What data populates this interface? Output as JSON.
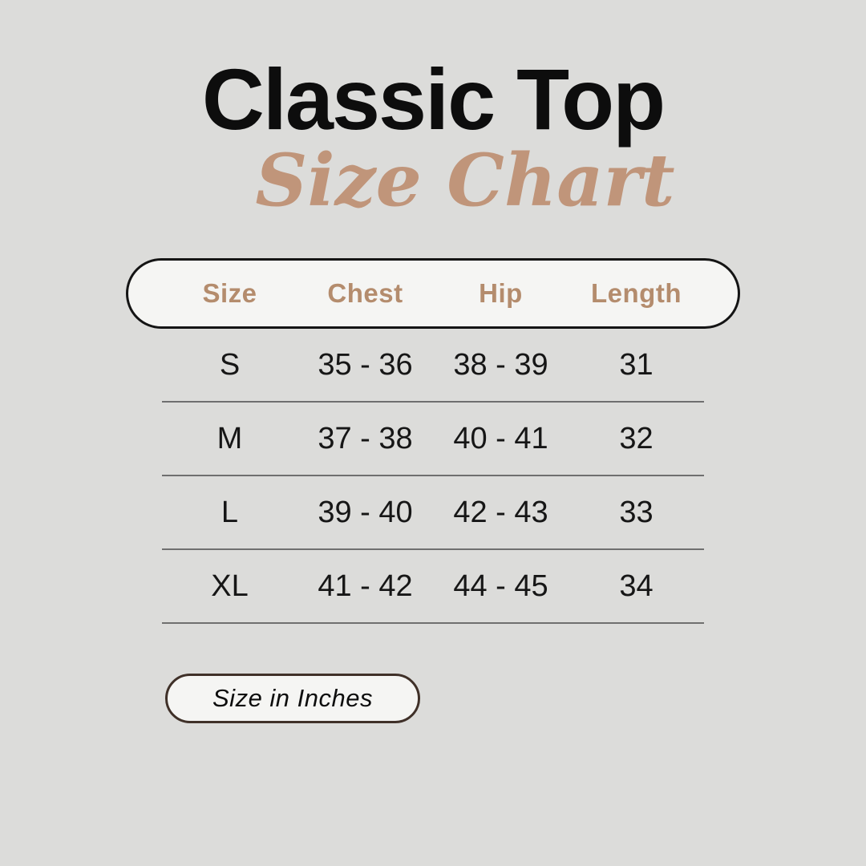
{
  "header": {
    "title": "Classic Top",
    "subtitle": "Size Chart"
  },
  "table": {
    "columns": [
      "Size",
      "Chest",
      "Hip",
      "Length"
    ],
    "rows": [
      {
        "size": "S",
        "chest": "35 - 36",
        "hip": "38 - 39",
        "length": "31"
      },
      {
        "size": "M",
        "chest": "37 - 38",
        "hip": "40 - 41",
        "length": "32"
      },
      {
        "size": "L",
        "chest": "39 - 40",
        "hip": "42 - 43",
        "length": "33"
      },
      {
        "size": "XL",
        "chest": "41 - 42",
        "hip": "44 - 45",
        "length": "34"
      }
    ]
  },
  "footnote": {
    "label": "Size in Inches"
  },
  "colors": {
    "background": "#dcdcda",
    "title": "#0d0d0d",
    "accent": "#b48c6d",
    "script-accent": "#c0957a",
    "divider": "#6f6f6f",
    "pill-bg": "#f5f5f3",
    "pill-border": "#141414",
    "badge-border": "#3f3028",
    "text": "#161616"
  },
  "chart_data": {
    "type": "table",
    "title": "Classic Top Size Chart",
    "columns": [
      "Size",
      "Chest",
      "Hip",
      "Length"
    ],
    "rows": [
      [
        "S",
        "35 - 36",
        "38 - 39",
        "31"
      ],
      [
        "M",
        "37 - 38",
        "40 - 41",
        "32"
      ],
      [
        "L",
        "39 - 40",
        "42 - 43",
        "33"
      ],
      [
        "XL",
        "41 - 42",
        "44 - 45",
        "34"
      ]
    ],
    "units": "inches"
  }
}
